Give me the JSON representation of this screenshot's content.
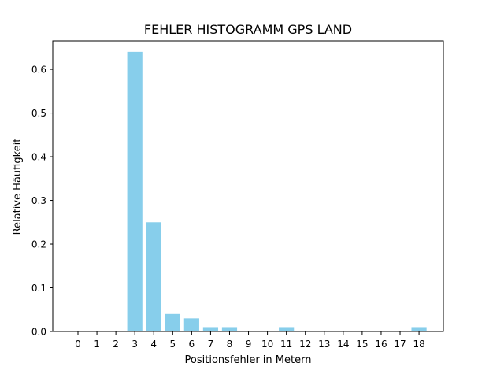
{
  "chart_data": {
    "type": "bar",
    "title": "FEHLER HISTOGRAMM GPS LAND",
    "xlabel": "Positionsfehler in Metern",
    "ylabel": "Relative Häufigkeit",
    "categories": [
      "0",
      "1",
      "2",
      "3",
      "4",
      "5",
      "6",
      "7",
      "8",
      "9",
      "10",
      "11",
      "12",
      "13",
      "14",
      "15",
      "16",
      "17",
      "18"
    ],
    "values": [
      0,
      0,
      0,
      0.64,
      0.25,
      0.04,
      0.03,
      0.01,
      0.01,
      0,
      0,
      0.01,
      0,
      0,
      0,
      0,
      0,
      0,
      0.01
    ],
    "ylim": [
      0,
      0.665
    ],
    "yticks": [
      "0.0",
      "0.1",
      "0.2",
      "0.3",
      "0.4",
      "0.5",
      "0.6"
    ],
    "ytick_values": [
      0,
      0.1,
      0.2,
      0.3,
      0.4,
      0.5,
      0.6
    ],
    "bar_color": "#87ceeb",
    "grid": false,
    "legend": false
  }
}
